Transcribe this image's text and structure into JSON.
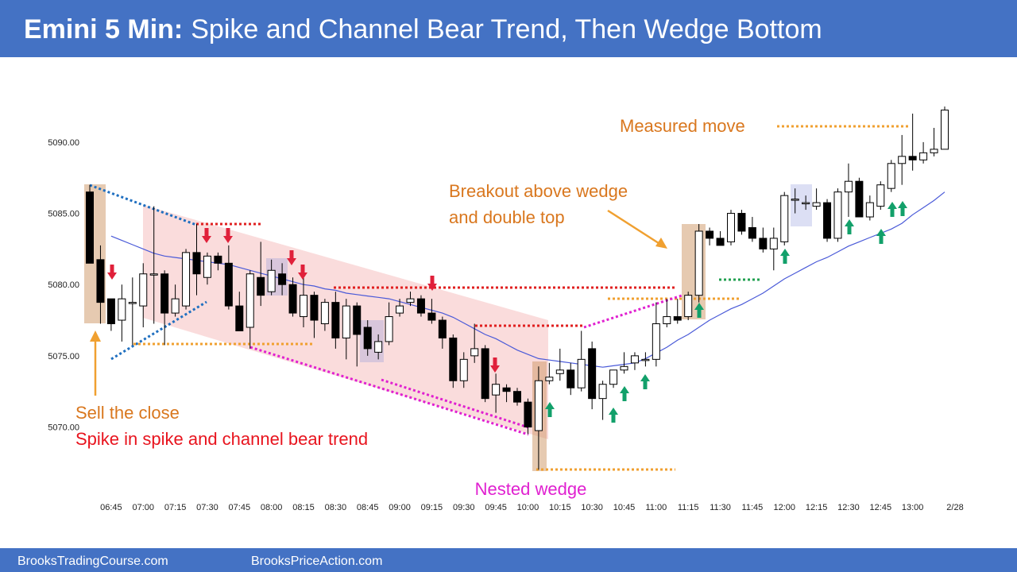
{
  "chart_data": {
    "type": "candlestick",
    "title_prefix": "Emini 5 Min:",
    "title": "Spike and Channel Bear Trend, Then Wedge Bottom",
    "categories": [
      null,
      null,
      "06:45",
      null,
      null,
      "07:00",
      null,
      null,
      "07:15",
      null,
      null,
      "07:30",
      null,
      null,
      "07:45",
      null,
      null,
      "08:00",
      null,
      null,
      "08:15",
      null,
      null,
      "08:30",
      null,
      null,
      "08:45",
      null,
      null,
      "09:00",
      null,
      null,
      "09:15",
      null,
      null,
      "09:30",
      null,
      null,
      "09:45",
      null,
      null,
      "10:00",
      null,
      null,
      "10:15",
      null,
      null,
      "10:30",
      null,
      null,
      "10:45",
      null,
      null,
      "11:00",
      null,
      null,
      "11:15",
      null,
      null,
      "11:30",
      null,
      null,
      "11:45",
      null,
      null,
      "12:00",
      null,
      null,
      "12:15",
      null,
      null,
      "12:30",
      null,
      null,
      "12:45",
      null,
      null,
      "13:00",
      null,
      null,
      null
    ],
    "date_label": "2/28",
    "open": [
      5086.5,
      5081.75,
      5079,
      5077.5,
      5078.75,
      5078.5,
      5080.75,
      5080.75,
      5078,
      5078.5,
      5082.25,
      5080.5,
      5082,
      5081.5,
      5078.5,
      5077,
      5080.5,
      5079.5,
      5080.75,
      5080,
      5077.75,
      5079.25,
      5077.25,
      5078.75,
      5076.25,
      5078.5,
      5077,
      5075.25,
      5076,
      5078,
      5078.75,
      5079,
      5078,
      5077.5,
      5076.25,
      5073.25,
      5075,
      5075.5,
      5072.25,
      5072.75,
      5072.5,
      5071.75,
      5069.75,
      5073.25,
      5073.75,
      5074,
      5072.75,
      5075.5,
      5072,
      5073,
      5074,
      5074.5,
      5074.75,
      5074.75,
      5077.25,
      5077.75,
      5077.75,
      5079.25,
      5083.75,
      5083.25,
      5083,
      5085,
      5084,
      5083.25,
      5082.5,
      5083,
      5086,
      5085.75,
      5085.5,
      5085.75,
      5083.25,
      5086.5,
      5087.25,
      5084.75,
      5085.5,
      5086.75,
      5088.5,
      5089,
      5088.75,
      5089.25,
      5089.5
    ],
    "high": [
      5087,
      5082.75,
      5079,
      5080,
      5080.5,
      5081.5,
      5085.5,
      5081,
      5080,
      5082.5,
      5084.25,
      5082.25,
      5082.25,
      5082.75,
      5079.5,
      5081,
      5083,
      5081.75,
      5081.5,
      5080.5,
      5080.5,
      5079.5,
      5079,
      5079.5,
      5079,
      5078.75,
      5077.5,
      5076.5,
      5078.75,
      5079,
      5079.5,
      5079.25,
      5079,
      5077.75,
      5076.5,
      5075.25,
      5077.25,
      5075.75,
      5073.75,
      5073,
      5072.75,
      5072,
      5074.25,
      5074.5,
      5075.5,
      5074.5,
      5076.75,
      5076,
      5073.25,
      5074,
      5075.25,
      5075.25,
      5075.25,
      5078.75,
      5079,
      5079,
      5079.5,
      5084.25,
      5084,
      5083.75,
      5085.25,
      5085.25,
      5084.75,
      5084,
      5084,
      5086.5,
      5086.75,
      5086.25,
      5086.75,
      5086,
      5086.75,
      5088.5,
      5087.5,
      5086.25,
      5087.25,
      5088.75,
      5090.5,
      5092,
      5090,
      5091,
      5092.5
    ],
    "low": [
      5081.5,
      5077.25,
      5076.75,
      5076,
      5075.75,
      5077,
      5077.25,
      5075.75,
      5077.75,
      5078.25,
      5079.25,
      5080,
      5081,
      5078.25,
      5076.75,
      5075.5,
      5078.5,
      5079.25,
      5079.25,
      5077.75,
      5077,
      5076.25,
      5076.75,
      5075.5,
      5074.75,
      5074.25,
      5075,
      5074.75,
      5075.75,
      5077.75,
      5078.5,
      5077.75,
      5077.25,
      5075.5,
      5072.75,
      5072.75,
      5074.5,
      5071.75,
      5071,
      5071.75,
      5071.5,
      5069.5,
      5067,
      5073,
      5073.25,
      5072.25,
      5072.5,
      5071.25,
      5070.5,
      5072.75,
      5073.75,
      5074,
      5074.25,
      5074.25,
      5077,
      5077.25,
      5077.5,
      5078.75,
      5082.75,
      5082.75,
      5082.75,
      5083.5,
      5083,
      5082.25,
      5081,
      5082.75,
      5085,
      5085.25,
      5085.25,
      5083,
      5083,
      5084.75,
      5084.75,
      5084.5,
      5085.25,
      5086.5,
      5087,
      5088,
      5088.5,
      5089,
      5089.5
    ],
    "close": [
      5081.5,
      5078.75,
      5077.25,
      5079,
      5078.75,
      5080.75,
      5080.75,
      5078,
      5079,
      5082.25,
      5080.75,
      5082,
      5081.5,
      5078.5,
      5076.75,
      5080.75,
      5079.25,
      5081,
      5080,
      5078,
      5079.25,
      5077.5,
      5078.75,
      5076.25,
      5078.5,
      5076.5,
      5075.5,
      5076,
      5077.75,
      5078.5,
      5079,
      5078,
      5077.5,
      5076.25,
      5073.25,
      5074.75,
      5075.5,
      5072,
      5073,
      5072.5,
      5071.75,
      5070,
      5073.25,
      5073.5,
      5074,
      5072.75,
      5074.75,
      5072,
      5073,
      5074,
      5074.25,
      5075,
      5074.75,
      5077.25,
      5077.75,
      5077.5,
      5079.25,
      5083.75,
      5083.25,
      5082.75,
      5085,
      5083.75,
      5083.25,
      5082.5,
      5083.25,
      5086.25,
      5086,
      5085.75,
      5085.75,
      5083.25,
      5086.5,
      5087.25,
      5084.75,
      5085.75,
      5087,
      5088.5,
      5089,
      5088.75,
      5089.25,
      5089.5,
      5092.25
    ],
    "bull_color": "#ffffff",
    "bear_color": "#000000",
    "ema": {
      "color": "#4a5ad8",
      "values": [
        null,
        null,
        5083.4,
        5083.1,
        5082.8,
        5082.5,
        5082.2,
        5082.0,
        5081.9,
        5081.8,
        5081.7,
        5081.6,
        5081.5,
        5081.4,
        5081.2,
        5081.0,
        5080.8,
        5080.6,
        5080.4,
        5080.2,
        5080.0,
        5079.9,
        5079.7,
        5079.6,
        5079.4,
        5079.3,
        5079.2,
        5079.1,
        5079.0,
        5078.8,
        5078.6,
        5078.4,
        5078.2,
        5078.0,
        5077.7,
        5077.3,
        5076.9,
        5076.5,
        5076.2,
        5075.8,
        5075.4,
        5075.1,
        5074.8,
        5074.7,
        5074.6,
        5074.5,
        5074.4,
        5074.3,
        5074.2,
        5074.3,
        5074.4,
        5074.5,
        5074.8,
        5075.2,
        5075.6,
        5076.1,
        5076.5,
        5077.0,
        5077.5,
        5077.9,
        5078.3,
        5078.6,
        5079.0,
        5079.4,
        5079.9,
        5080.4,
        5080.8,
        5081.2,
        5081.6,
        5081.9,
        5082.3,
        5082.7,
        5083.0,
        5083.3,
        5083.6,
        5083.9,
        5084.3,
        5084.9,
        5085.4,
        5085.9,
        5086.5
      ]
    },
    "ylim": [
      5065.4,
      5094.4
    ],
    "yticks": [
      {
        "value": 5070,
        "label": "5070.00"
      },
      {
        "value": 5075,
        "label": "5075.00"
      },
      {
        "value": 5080,
        "label": "5080.00"
      },
      {
        "value": 5085,
        "label": "5085.00"
      },
      {
        "value": 5090,
        "label": "5090.00"
      }
    ],
    "grid": false,
    "annotations": {
      "measured_move": "Measured move",
      "breakout": [
        "Breakout above wedge",
        "and double top"
      ],
      "sell_close": "Sell the close",
      "spike": "Spike in spike and channel bear trend",
      "nested_wedge": "Nested wedge"
    }
  },
  "footer": [
    "BrooksTradingCourse.com",
    "BrooksPriceAction.com"
  ]
}
